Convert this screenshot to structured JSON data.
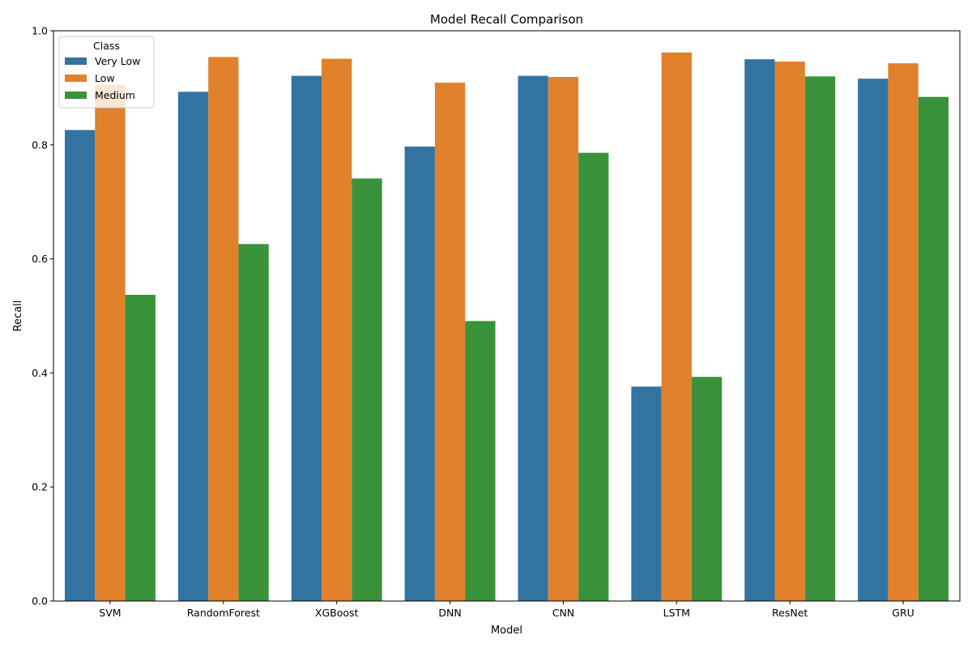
{
  "chart_data": {
    "type": "bar",
    "title": "Model Recall Comparison",
    "xlabel": "Model",
    "ylabel": "Recall",
    "ylim": [
      0,
      1.0
    ],
    "yticks": [
      "0.0",
      "0.2",
      "0.4",
      "0.6",
      "0.8",
      "1.0"
    ],
    "grid": false,
    "legend": {
      "title": "Class",
      "placement": "top-left"
    },
    "categories": [
      "SVM",
      "RandomForest",
      "XGBoost",
      "DNN",
      "CNN",
      "LSTM",
      "ResNet",
      "GRU"
    ],
    "series": [
      {
        "name": "Very Low",
        "color": "#3274a1",
        "values": [
          0.826,
          0.893,
          0.921,
          0.797,
          0.921,
          0.376,
          0.95,
          0.916
        ]
      },
      {
        "name": "Low",
        "color": "#e1812c",
        "values": [
          0.905,
          0.954,
          0.951,
          0.909,
          0.919,
          0.962,
          0.946,
          0.943
        ]
      },
      {
        "name": "Medium",
        "color": "#3a923a",
        "values": [
          0.537,
          0.626,
          0.741,
          0.491,
          0.786,
          0.393,
          0.92,
          0.884
        ]
      }
    ]
  }
}
